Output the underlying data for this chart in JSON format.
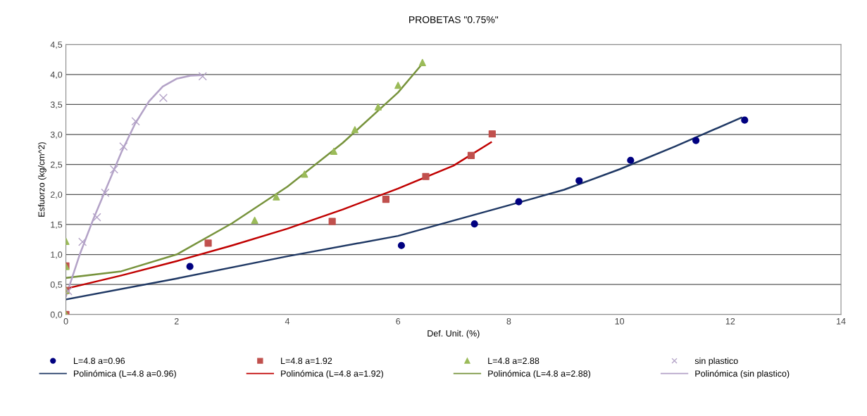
{
  "chart_data": {
    "type": "scatter",
    "title": "PROBETAS \"0.75%\"",
    "xlabel": "Def. Unit. (%)",
    "ylabel": "Esfuorzo (kg/cm^2)",
    "xlim": [
      0,
      14
    ],
    "xticks": [
      0,
      2,
      4,
      6,
      8,
      10,
      12,
      14
    ],
    "ylim": [
      0,
      4.5
    ],
    "yticks": [
      {
        "value": 0,
        "label": "0,0"
      },
      {
        "value": 0.5,
        "label": "0,5"
      },
      {
        "value": 1,
        "label": "1,0"
      },
      {
        "value": 1.5,
        "label": "1,5"
      },
      {
        "value": 2,
        "label": "2,0"
      },
      {
        "value": 2.5,
        "label": "2,5"
      },
      {
        "value": 3,
        "label": "3,0"
      },
      {
        "value": 3.5,
        "label": "3,5"
      },
      {
        "value": 4,
        "label": "4,0"
      },
      {
        "value": 4.5,
        "label": "4,5"
      }
    ],
    "grid": "y",
    "legend": "bottom",
    "series": [
      {
        "name": "L=4.8 a=0.96",
        "marker": "circle",
        "color": "#000080",
        "x": [
          2.24,
          6.06,
          7.38,
          8.18,
          9.27,
          10.2,
          11.38,
          12.26
        ],
        "values": [
          0.8,
          1.15,
          1.51,
          1.88,
          2.23,
          2.57,
          2.9,
          3.24
        ]
      },
      {
        "name": "Polinómica (L=4.8 a=0.96)",
        "type": "line",
        "marker": "none",
        "color": "#1f3864",
        "x": [
          0,
          2,
          4,
          6,
          8,
          9,
          10,
          11,
          12.2
        ],
        "values": [
          0.25,
          0.6,
          0.97,
          1.31,
          1.82,
          2.08,
          2.42,
          2.8,
          3.28
        ]
      },
      {
        "name": "L=4.8 a=1.92",
        "marker": "square",
        "color": "#c0504d",
        "x": [
          0,
          0,
          0,
          2.57,
          4.81,
          5.78,
          6.5,
          7.32,
          7.7
        ],
        "values": [
          0,
          0.4,
          0.81,
          1.19,
          1.55,
          1.92,
          2.3,
          2.65,
          3.01
        ]
      },
      {
        "name": "Polinómica (L=4.8 a=1.92)",
        "type": "line",
        "marker": "none",
        "color": "#c00000",
        "x": [
          0,
          1,
          2,
          3,
          4,
          5,
          6,
          7,
          7.68
        ],
        "values": [
          0.43,
          0.65,
          0.89,
          1.15,
          1.43,
          1.75,
          2.1,
          2.48,
          2.87
        ]
      },
      {
        "name": "L=4.8 a=2.88",
        "marker": "triangle",
        "color": "#9bbb59",
        "x": [
          0,
          0,
          0,
          0,
          3.41,
          3.8,
          4.31,
          4.84,
          5.22,
          5.64,
          6.0,
          6.44
        ],
        "values": [
          0,
          0.4,
          0.8,
          1.22,
          1.57,
          1.96,
          2.34,
          2.72,
          3.08,
          3.46,
          3.82,
          4.2
        ]
      },
      {
        "name": "Polinómica (L=4.8 a=2.88)",
        "type": "line",
        "marker": "none",
        "color": "#77933c",
        "x": [
          0,
          1,
          2,
          3,
          4,
          5,
          6,
          6.44
        ],
        "values": [
          0.61,
          0.72,
          1.0,
          1.52,
          2.13,
          2.86,
          3.7,
          4.18
        ]
      },
      {
        "name": "sin plastico",
        "marker": "cross",
        "color": "#b3a2c7",
        "x": [
          0.04,
          0.3,
          0.56,
          0.71,
          0.87,
          1.04,
          1.26,
          1.76,
          2.47
        ],
        "values": [
          0.39,
          1.21,
          1.62,
          2.03,
          2.42,
          2.8,
          3.22,
          3.61,
          3.97
        ]
      },
      {
        "name": "Polinómica (sin plastico)",
        "type": "line",
        "marker": "none",
        "color": "#b3a2c7",
        "x": [
          0,
          0.25,
          0.5,
          0.75,
          1.0,
          1.25,
          1.5,
          1.75,
          2.0,
          2.25,
          2.45
        ],
        "values": [
          0.3,
          1.0,
          1.6,
          2.15,
          2.7,
          3.18,
          3.55,
          3.8,
          3.93,
          3.98,
          3.99
        ]
      }
    ]
  }
}
